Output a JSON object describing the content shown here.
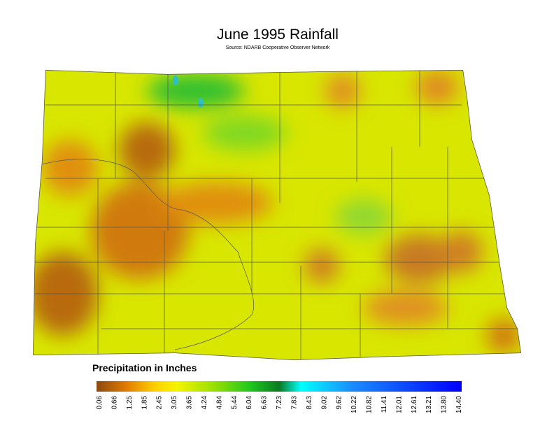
{
  "title": "June 1995 Rainfall",
  "source": "Source: NDARB Cooperative Observer Network",
  "legend": {
    "title": "Precipitation in Inches",
    "ticks": [
      "0.06",
      "0.66",
      "1.25",
      "1.85",
      "2.45",
      "3.05",
      "3.65",
      "4.24",
      "4.84",
      "5.44",
      "6.04",
      "6.63",
      "7.23",
      "7.83",
      "8.43",
      "9.02",
      "9.62",
      "10.22",
      "10.82",
      "11.41",
      "12.01",
      "12.61",
      "13.21",
      "13.80",
      "14.40"
    ]
  }
}
